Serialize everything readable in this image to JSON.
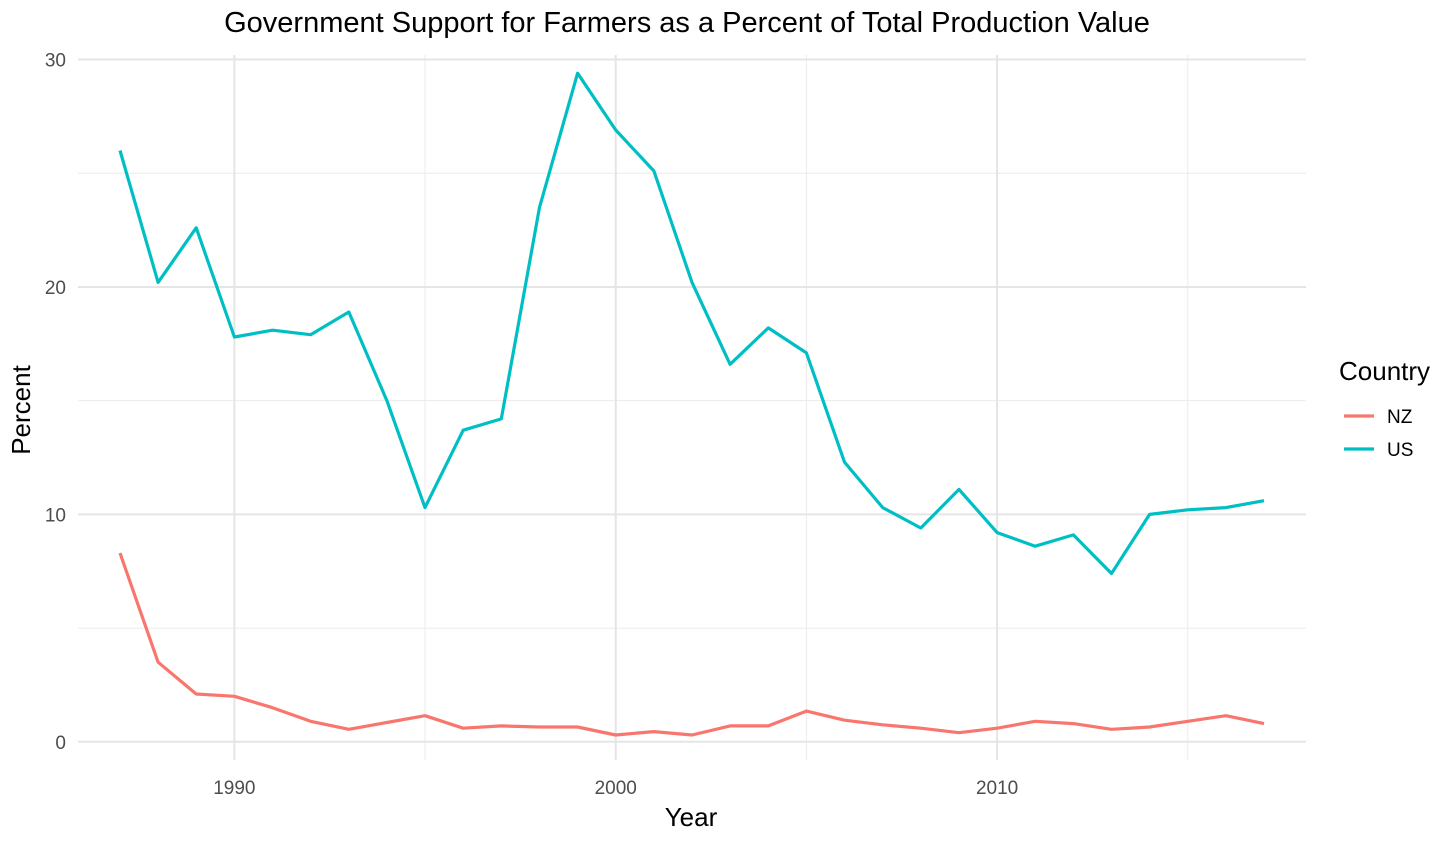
{
  "chart_data": {
    "type": "line",
    "title": "Government Support for Farmers as a Percent of Total Production Value",
    "xlabel": "Year",
    "ylabel": "Percent",
    "x": [
      1987,
      1988,
      1989,
      1990,
      1991,
      1992,
      1993,
      1994,
      1995,
      1996,
      1997,
      1998,
      1999,
      2000,
      2001,
      2002,
      2003,
      2004,
      2005,
      2006,
      2007,
      2008,
      2009,
      2010,
      2011,
      2012,
      2013,
      2014,
      2015,
      2016,
      2017
    ],
    "xlim": [
      1985.9,
      2018.1
    ],
    "ylim": [
      -0.8,
      30.2
    ],
    "xticks": [
      1990,
      2000,
      2010
    ],
    "xtick_labels": [
      "1990",
      "2000",
      "2010"
    ],
    "x_minor_gridlines": [
      1995,
      2005,
      2015
    ],
    "yticks": [
      0,
      10,
      20,
      30
    ],
    "ytick_labels": [
      "0",
      "10",
      "20",
      "30"
    ],
    "y_minor_gridlines": [
      5,
      15,
      25
    ],
    "grid": true,
    "legend": {
      "title": "Country",
      "position": "right"
    },
    "series": [
      {
        "name": "NZ",
        "color": "#F8766D",
        "values": [
          8.3,
          3.5,
          2.1,
          2.0,
          1.5,
          0.9,
          0.55,
          0.85,
          1.15,
          0.6,
          0.7,
          0.65,
          0.65,
          0.3,
          0.45,
          0.3,
          0.7,
          0.7,
          1.35,
          0.95,
          0.75,
          0.6,
          0.4,
          0.6,
          0.9,
          0.8,
          0.55,
          0.65,
          0.9,
          1.15,
          0.8
        ]
      },
      {
        "name": "US",
        "color": "#00BFC4",
        "values": [
          26.0,
          20.2,
          22.6,
          17.8,
          18.1,
          17.9,
          18.9,
          15.0,
          10.3,
          13.7,
          14.2,
          23.5,
          29.4,
          26.9,
          25.1,
          20.2,
          16.6,
          18.2,
          17.1,
          12.3,
          10.3,
          9.4,
          11.1,
          9.2,
          8.6,
          9.1,
          7.4,
          10.0,
          10.2,
          10.3,
          10.6
        ]
      }
    ]
  }
}
